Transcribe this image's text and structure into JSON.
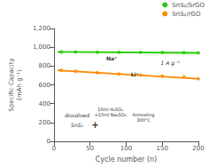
{
  "chart_data": {
    "type": "line",
    "xlabel": "Cycle number (n)",
    "ylabel": "Specific Capacity\n(mAh g⁻¹)",
    "xlim": [
      0,
      200
    ],
    "xticks": [
      0,
      50,
      100,
      150,
      200
    ],
    "ylim": [
      0,
      1200
    ],
    "yticks": [
      0,
      200,
      400,
      600,
      800,
      1000,
      1200
    ],
    "grid": false,
    "legend": "upper right",
    "series": [
      {
        "name": "SnS₂/SrGO",
        "color": "#22cc00",
        "type": "line",
        "x": [
          5,
          200
        ],
        "values": [
          950,
          940
        ]
      },
      {
        "name": "SnS₂/rGO",
        "color": "#ff8800",
        "type": "line",
        "x": [
          5,
          200
        ],
        "values": [
          755,
          665
        ]
      },
      {
        "name": "SnS₂/SrGO",
        "color": "#22cc00",
        "type": "scatter",
        "marker": "circle",
        "x": [
          10,
          30,
          60,
          90,
          120,
          150,
          180,
          200
        ],
        "values": [
          950,
          950,
          948,
          947,
          946,
          944,
          942,
          940
        ]
      },
      {
        "name": "SnS₂/rGO",
        "color": "#ff8800",
        "type": "scatter",
        "marker": "circle",
        "x": [
          10,
          30,
          60,
          90,
          120,
          150,
          180,
          200
        ],
        "values": [
          755,
          745,
          730,
          715,
          705,
          695,
          685,
          665
        ]
      }
    ],
    "annotations": [
      {
        "text": "1 A g⁻¹"
      },
      {
        "text": "Na⁺"
      },
      {
        "text": "Li⁺"
      },
      {
        "text": "SnS₂"
      },
      {
        "text": "dissolved"
      },
      {
        "text": "+"
      },
      {
        "text": "10ml H₂SO₄\n+10ml Na₂SO₃"
      },
      {
        "text": "Annealing\n300°C"
      }
    ]
  }
}
